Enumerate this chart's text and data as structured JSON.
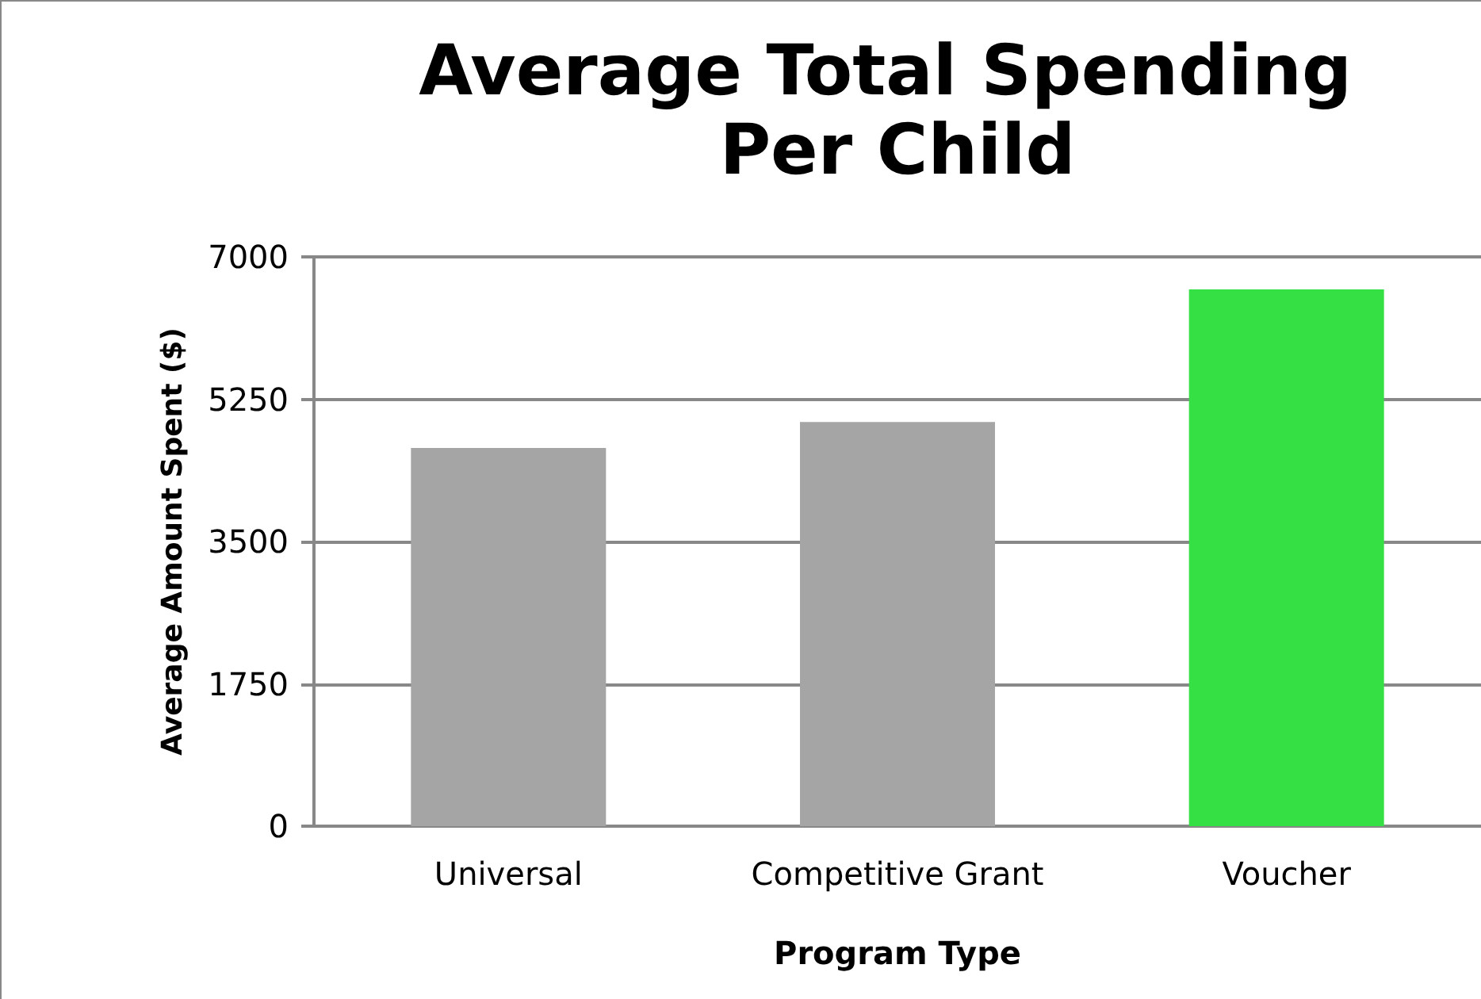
{
  "chart_data": {
    "type": "bar",
    "title": "Average Total Spending Per Child",
    "xlabel": "Program Type",
    "ylabel": "Average Amount Spent ($)",
    "categories": [
      "Universal",
      "Competitive Grant",
      "Voucher"
    ],
    "values": [
      4650,
      4970,
      6600
    ],
    "colors": [
      "#a5a5a5",
      "#a5a5a5",
      "#35e045"
    ],
    "ylim": [
      0,
      7000
    ],
    "yticks": [
      0,
      1750,
      3500,
      5250,
      7000
    ],
    "grid": "y"
  }
}
